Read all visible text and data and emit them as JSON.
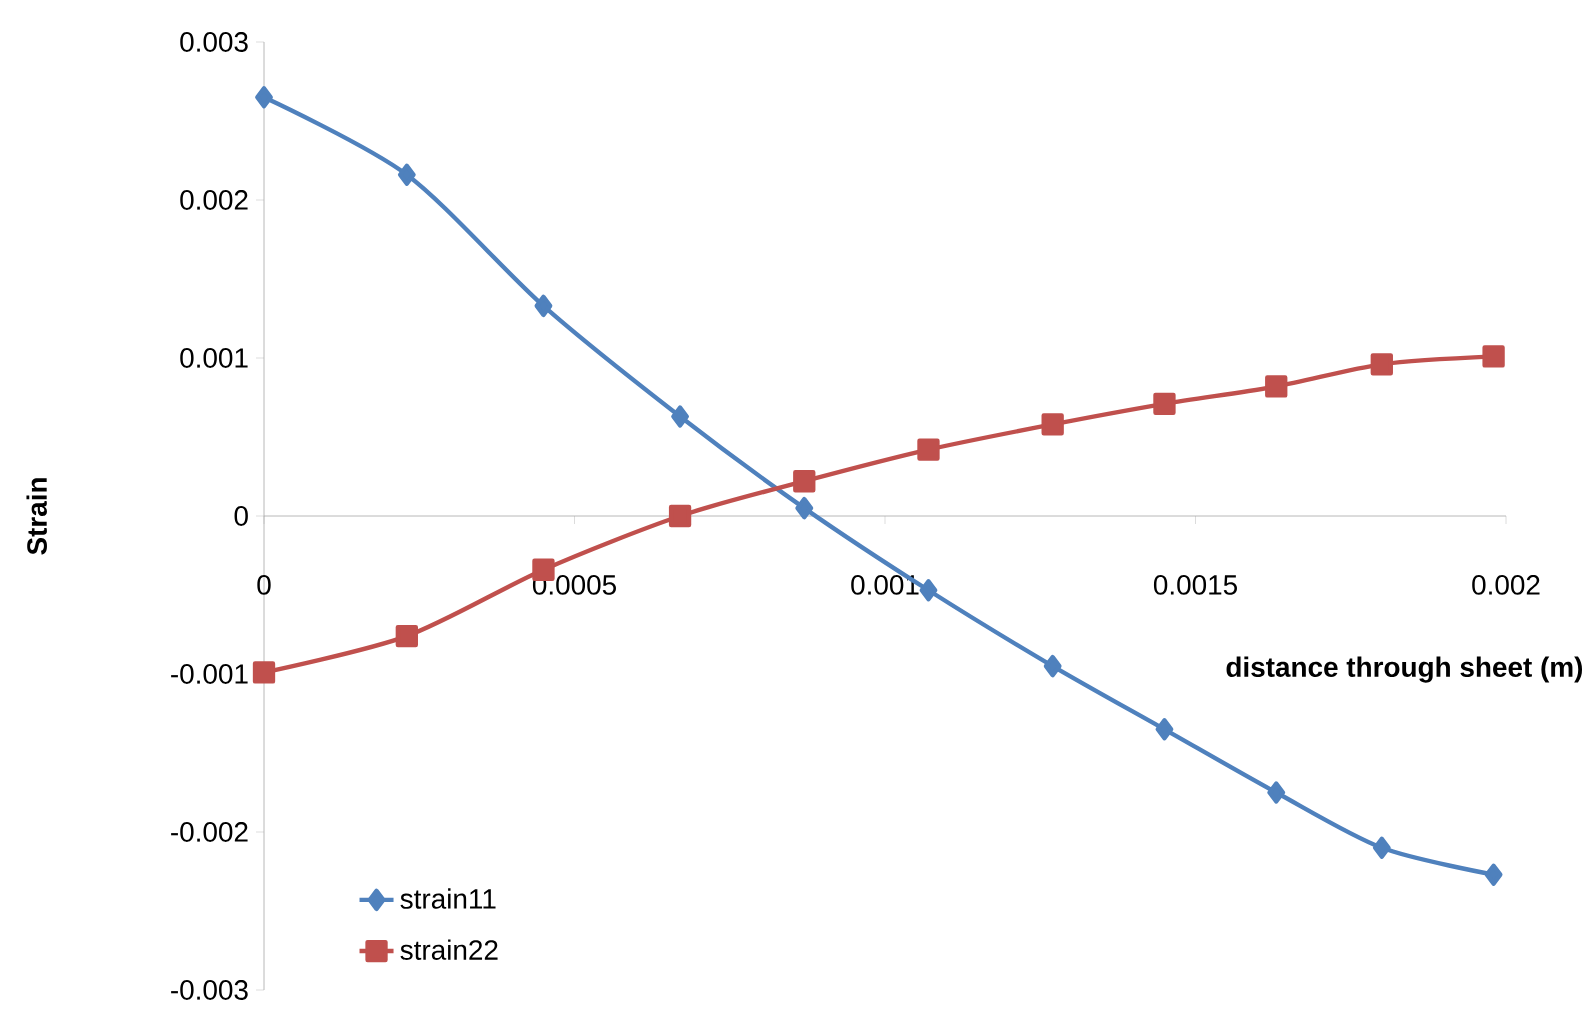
{
  "chart_data": {
    "type": "line",
    "xlabel": "distance through sheet (m)",
    "ylabel": "Strain",
    "xlim": [
      0,
      0.002
    ],
    "xticks": [
      0,
      0.0005,
      0.001,
      0.0015,
      0.002
    ],
    "ylim": [
      -0.003,
      0.003
    ],
    "yticks": [
      -0.003,
      -0.002,
      -0.001,
      0,
      0.001,
      0.002,
      0.003
    ],
    "grid": false,
    "legend": "bottom left",
    "line_style": "solid",
    "series": [
      {
        "name": "strain11",
        "color": "#4f81bd",
        "marker": "diamond",
        "x": [
          0,
          0.00023,
          0.00045,
          0.00067,
          0.00087,
          0.00107,
          0.00127,
          0.00145,
          0.00163,
          0.0018,
          0.00198
        ],
        "values": [
          0.00265,
          0.00216,
          0.00133,
          0.00063,
          5e-05,
          -0.00047,
          -0.00095,
          -0.00135,
          -0.00175,
          -0.0021,
          -0.00227
        ]
      },
      {
        "name": "strain22",
        "color": "#c0504d",
        "marker": "square",
        "x": [
          0,
          0.00023,
          0.00045,
          0.00067,
          0.00087,
          0.00107,
          0.00127,
          0.00145,
          0.00163,
          0.0018,
          0.00198
        ],
        "values": [
          -0.00099,
          -0.00076,
          -0.00034,
          0,
          0.00022,
          0.00042,
          0.00058,
          0.00071,
          0.00082,
          0.00096,
          0.00101
        ]
      }
    ]
  }
}
